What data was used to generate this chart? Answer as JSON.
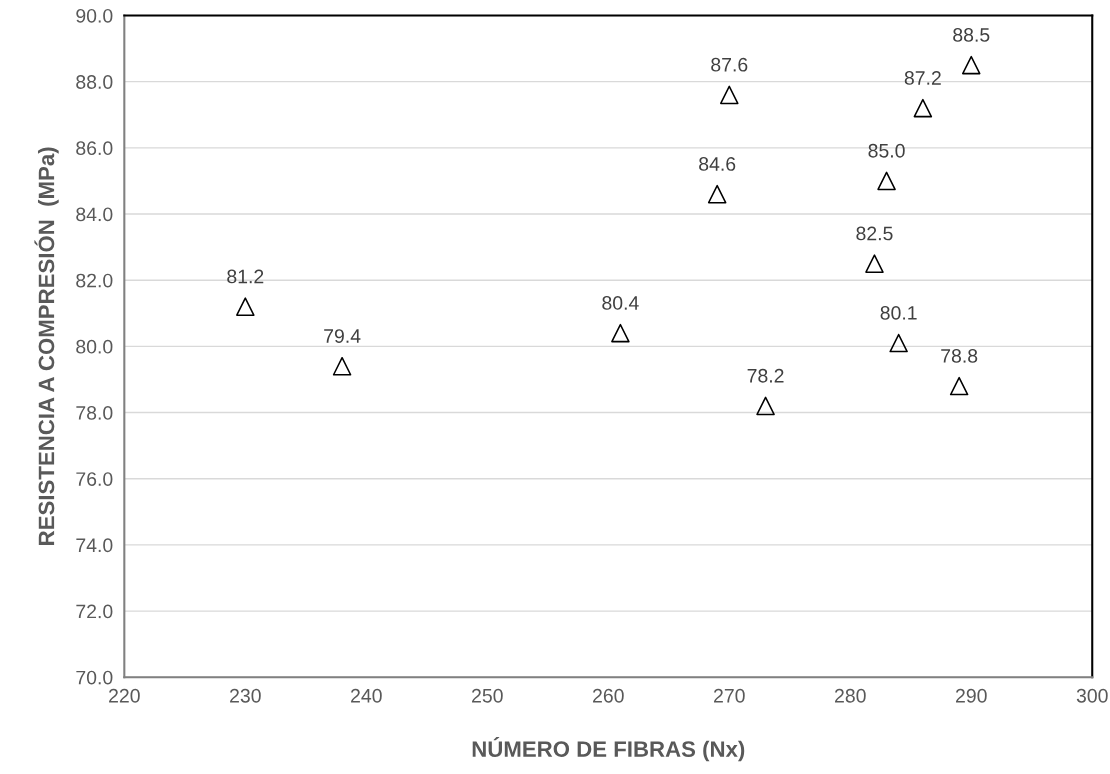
{
  "chart_data": {
    "type": "scatter",
    "xlabel": "NÚMERO DE FIBRAS (Nx)",
    "ylabel": "RESISTENCIA A COMPRESIÓN  (MPa)",
    "x": [
      230,
      238,
      261,
      269,
      270,
      273,
      282,
      283,
      284,
      286,
      289,
      290
    ],
    "values": [
      81.2,
      79.4,
      80.4,
      84.6,
      87.6,
      78.2,
      82.5,
      85.0,
      80.1,
      87.2,
      78.8,
      88.5
    ],
    "value_labels": [
      "81.2",
      "79.4",
      "80.4",
      "84.6",
      "87.6",
      "78.2",
      "82.5",
      "85.0",
      "80.1",
      "87.2",
      "78.8",
      "88.5"
    ],
    "color": "#000000",
    "marker": "triangle",
    "xlim": [
      220,
      300
    ],
    "xticks": [
      220,
      230,
      240,
      250,
      260,
      270,
      280,
      290,
      300
    ],
    "ylim": [
      70,
      90
    ],
    "yticks": [
      {
        "value": 70,
        "label": "70.0"
      },
      {
        "value": 72,
        "label": "72.0"
      },
      {
        "value": 74,
        "label": "74.0"
      },
      {
        "value": 76,
        "label": "76.0"
      },
      {
        "value": 78,
        "label": "78.0"
      },
      {
        "value": 80,
        "label": "80.0"
      },
      {
        "value": 82,
        "label": "82.0"
      },
      {
        "value": 84,
        "label": "84.0"
      },
      {
        "value": 86,
        "label": "86.0"
      },
      {
        "value": 88,
        "label": "88.0"
      },
      {
        "value": 90,
        "label": "90.0"
      }
    ],
    "grid": "y",
    "legend": false
  }
}
